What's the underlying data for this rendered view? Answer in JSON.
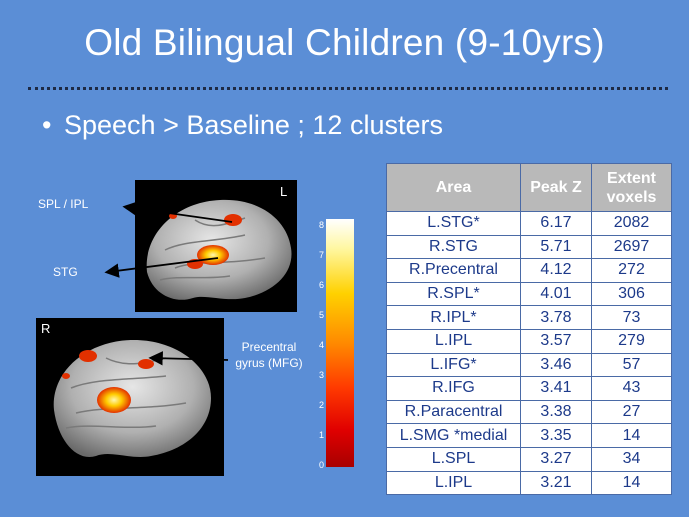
{
  "slide": {
    "title": "Old Bilingual Children (9-10yrs)",
    "bullet": "Speech > Baseline ; 12 clusters"
  },
  "figure": {
    "labels": {
      "spl_ipl": "SPL / IPL",
      "stg": "STG",
      "precentral_line1": "Precentral",
      "precentral_line2": "gyrus (MFG)"
    },
    "panel_left_letter": "L",
    "panel_right_letter": "R",
    "colorbar_ticks": [
      "8",
      "7",
      "6",
      "5",
      "4",
      "3",
      "2",
      "1",
      "0"
    ]
  },
  "table": {
    "headers": {
      "area": "Area",
      "peak_z": "Peak Z",
      "extent_line1": "Extent",
      "extent_line2": "voxels"
    },
    "rows": [
      {
        "area": "L.STG*",
        "peak_z": "6.17",
        "extent": "2082"
      },
      {
        "area": "R.STG",
        "peak_z": "5.71",
        "extent": "2697"
      },
      {
        "area": "R.Precentral",
        "peak_z": "4.12",
        "extent": "272"
      },
      {
        "area": "R.SPL*",
        "peak_z": "4.01",
        "extent": "306"
      },
      {
        "area": "R.IPL*",
        "peak_z": "3.78",
        "extent": "73"
      },
      {
        "area": "L.IPL",
        "peak_z": "3.57",
        "extent": "279"
      },
      {
        "area": "L.IFG*",
        "peak_z": "3.46",
        "extent": "57"
      },
      {
        "area": "R.IFG",
        "peak_z": "3.41",
        "extent": "43"
      },
      {
        "area": "R.Paracentral",
        "peak_z": "3.38",
        "extent": "27"
      },
      {
        "area": "L.SMG *medial",
        "peak_z": "3.35",
        "extent": "14"
      },
      {
        "area": "L.SPL",
        "peak_z": "3.27",
        "extent": "34"
      },
      {
        "area": "L.IPL",
        "peak_z": "3.21",
        "extent": "14"
      }
    ]
  },
  "colors": {
    "background": "#5b8ed6",
    "header_fill": "#b9b9b9",
    "cell_text": "#1d3a8a"
  }
}
